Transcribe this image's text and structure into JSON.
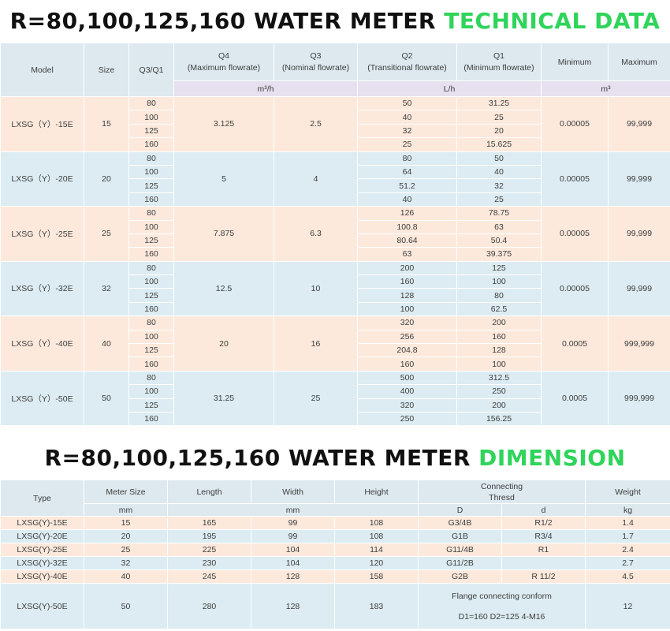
{
  "tech_title": {
    "prefix": "R=80,100,125,160  WATER METER ",
    "highlight": "TECHNICAL DATA"
  },
  "tech_headers": {
    "model": "Model",
    "size": "Size",
    "ratio": "Q3/Q1",
    "q4_line1": "Q4",
    "q4_line2": "(Maximum flowrate)",
    "q3_line1": "Q3",
    "q3_line2": "(Nominal flowrate)",
    "q2_line1": "Q2",
    "q2_line2": "(Transitional flowrate)",
    "q1_line1": "Q1",
    "q1_line2": "(Minimum flowrate)",
    "minimum": "Minimum",
    "maximum": "Maximum",
    "unit_m3h": "m³/h",
    "unit_lh": "L/h",
    "unit_m3": "m³"
  },
  "tech_rows": [
    {
      "model": "LXSG（Y）-15E",
      "size": "15",
      "q4": "3.125",
      "q3": "2.5",
      "min": "0.00005",
      "max": "99,999",
      "sub": [
        {
          "r": "80",
          "q2": "50",
          "q1": "31.25"
        },
        {
          "r": "100",
          "q2": "40",
          "q1": "25"
        },
        {
          "r": "125",
          "q2": "32",
          "q1": "20"
        },
        {
          "r": "160",
          "q2": "25",
          "q1": "15.625"
        }
      ]
    },
    {
      "model": "LXSG（Y）-20E",
      "size": "20",
      "q4": "5",
      "q3": "4",
      "min": "0.00005",
      "max": "99,999",
      "sub": [
        {
          "r": "80",
          "q2": "80",
          "q1": "50"
        },
        {
          "r": "100",
          "q2": "64",
          "q1": "40"
        },
        {
          "r": "125",
          "q2": "51.2",
          "q1": "32"
        },
        {
          "r": "160",
          "q2": "40",
          "q1": "25"
        }
      ]
    },
    {
      "model": "LXSG（Y）-25E",
      "size": "25",
      "q4": "7.875",
      "q3": "6.3",
      "min": "0.00005",
      "max": "99,999",
      "sub": [
        {
          "r": "80",
          "q2": "126",
          "q1": "78.75"
        },
        {
          "r": "100",
          "q2": "100.8",
          "q1": "63"
        },
        {
          "r": "125",
          "q2": "80.64",
          "q1": "50.4"
        },
        {
          "r": "160",
          "q2": "63",
          "q1": "39.375"
        }
      ]
    },
    {
      "model": "LXSG（Y）-32E",
      "size": "32",
      "q4": "12.5",
      "q3": "10",
      "min": "0.00005",
      "max": "99,999",
      "sub": [
        {
          "r": "80",
          "q2": "200",
          "q1": "125"
        },
        {
          "r": "100",
          "q2": "160",
          "q1": "100"
        },
        {
          "r": "125",
          "q2": "128",
          "q1": "80"
        },
        {
          "r": "160",
          "q2": "100",
          "q1": "62.5"
        }
      ]
    },
    {
      "model": "LXSG（Y）-40E",
      "size": "40",
      "q4": "20",
      "q3": "16",
      "min": "0.0005",
      "max": "999,999",
      "sub": [
        {
          "r": "80",
          "q2": "320",
          "q1": "200"
        },
        {
          "r": "100",
          "q2": "256",
          "q1": "160"
        },
        {
          "r": "125",
          "q2": "204.8",
          "q1": "128"
        },
        {
          "r": "160",
          "q2": "160",
          "q1": "100"
        }
      ]
    },
    {
      "model": "LXSG（Y）-50E",
      "size": "50",
      "q4": "31.25",
      "q3": "25",
      "min": "0.0005",
      "max": "999,999",
      "sub": [
        {
          "r": "80",
          "q2": "500",
          "q1": "312.5"
        },
        {
          "r": "100",
          "q2": "400",
          "q1": "250"
        },
        {
          "r": "125",
          "q2": "320",
          "q1": "200"
        },
        {
          "r": "160",
          "q2": "250",
          "q1": "156.25"
        }
      ]
    }
  ],
  "dim_title": {
    "prefix": "R=80,100,125,160  WATER METER ",
    "highlight": "DIMENSION"
  },
  "dim_headers": {
    "type": "Type",
    "meter_size": "Meter Size",
    "length": "Length",
    "width": "Width",
    "height": "Height",
    "connecting_line1": "Connecting",
    "connecting_line2": "Thresd",
    "weight": "Weight",
    "unit_mm_1": "mm",
    "unit_mm_2": "mm",
    "d_upper": "D",
    "d_lower": "d",
    "unit_kg": "kg"
  },
  "dim_rows": [
    {
      "type": "LXSG(Y)-15E",
      "size": "15",
      "length": "165",
      "width": "99",
      "height": "108",
      "D": "G3/4B",
      "d": "R1/2",
      "weight": "1.4"
    },
    {
      "type": "LXSG(Y)-20E",
      "size": "20",
      "length": "195",
      "width": "99",
      "height": "108",
      "D": "G1B",
      "d": "R3/4",
      "weight": "1.7"
    },
    {
      "type": "LXSG(Y)-25E",
      "size": "25",
      "length": "225",
      "width": "104",
      "height": "114",
      "D": "G11/4B",
      "d": "R1",
      "weight": "2.4"
    },
    {
      "type": "LXSG(Y)-32E",
      "size": "32",
      "length": "230",
      "width": "104",
      "height": "120",
      "D": "G11/2B",
      "d": "",
      "weight": "2.7"
    },
    {
      "type": "LXSG(Y)-40E",
      "size": "40",
      "length": "245",
      "width": "128",
      "height": "158",
      "D": "G2B",
      "d": "R 11/2",
      "weight": "4.5"
    }
  ],
  "dim_last_row": {
    "type": "LXSG(Y)-50E",
    "size": "50",
    "length": "280",
    "width": "128",
    "height": "183",
    "flange_line1": "Flange connecting conform",
    "flange_line2": "D1=160 D2=125 4-M16",
    "weight": "12"
  }
}
